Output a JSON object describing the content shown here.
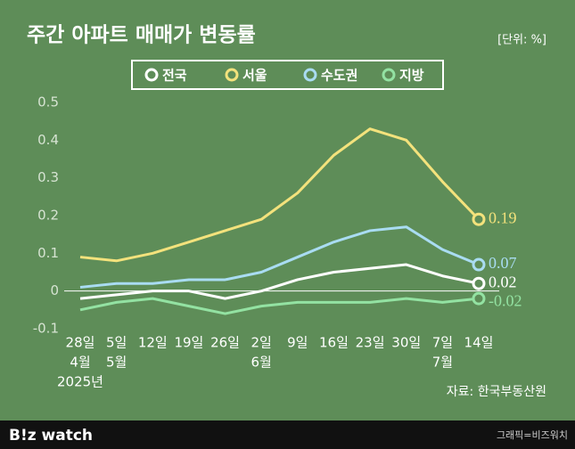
{
  "chart_data": {
    "type": "line",
    "title": "주간 아파트 매매가 변동률",
    "unit_note": "[단위: %]",
    "source": "자료: 한국부동산원",
    "categories": [
      [
        "28일",
        "4월",
        "2025년"
      ],
      [
        "5일",
        "5월"
      ],
      [
        "12일"
      ],
      [
        "19일"
      ],
      [
        "26일"
      ],
      [
        "2일",
        "6월"
      ],
      [
        "9일"
      ],
      [
        "16일"
      ],
      [
        "23일"
      ],
      [
        "30일"
      ],
      [
        "7일",
        "7월"
      ],
      [
        "14일"
      ]
    ],
    "series": [
      {
        "name": "전국",
        "color": "#ffffff",
        "values": [
          -0.02,
          -0.01,
          0,
          0,
          -0.02,
          0,
          0.03,
          0.05,
          0.06,
          0.07,
          0.04,
          0.02
        ]
      },
      {
        "name": "서울",
        "color": "#f3e27c",
        "values": [
          0.09,
          0.08,
          0.1,
          0.13,
          0.16,
          0.19,
          0.26,
          0.36,
          0.43,
          0.4,
          0.29,
          0.19
        ]
      },
      {
        "name": "수도권",
        "color": "#a9dcf2",
        "values": [
          0.01,
          0.02,
          0.02,
          0.03,
          0.03,
          0.05,
          0.09,
          0.13,
          0.16,
          0.17,
          0.11,
          0.07
        ]
      },
      {
        "name": "지방",
        "color": "#93e2a2",
        "values": [
          -0.05,
          -0.03,
          -0.02,
          -0.04,
          -0.06,
          -0.04,
          -0.03,
          -0.03,
          -0.03,
          -0.02,
          -0.03,
          -0.02
        ]
      }
    ],
    "ylim": [
      -0.1,
      0.5
    ],
    "yticks": [
      -0.1,
      0,
      0.1,
      0.2,
      0.3,
      0.4,
      0.5
    ],
    "grid": false,
    "zero_line": true
  },
  "footer": {
    "logo": "B!z watch",
    "credit": "그래픽=비즈워치"
  }
}
